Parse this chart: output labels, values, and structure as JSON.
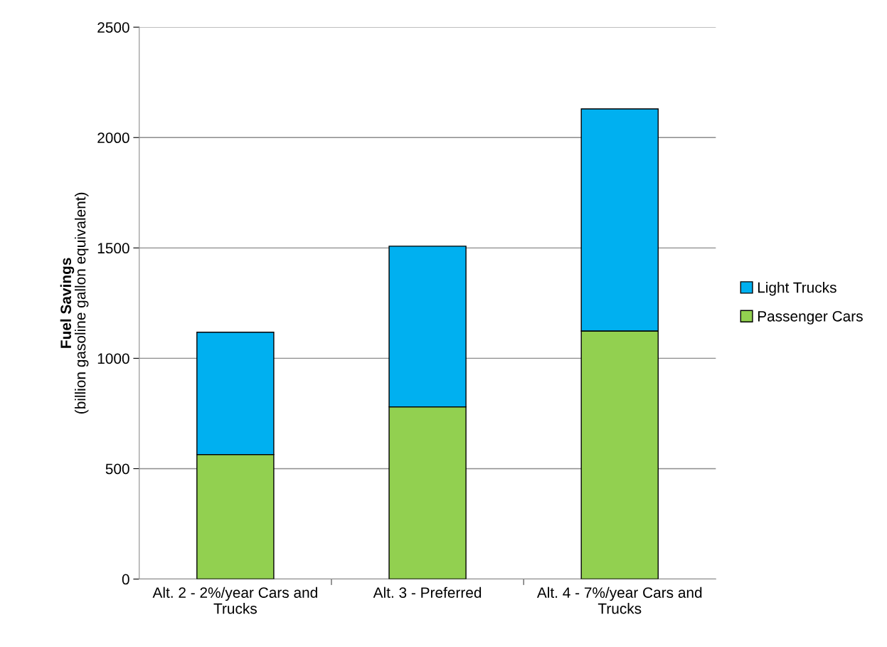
{
  "chart_data": {
    "type": "bar",
    "stacked": true,
    "ylabel": "Fuel Savings\n(billion gasoline gallon equivalent)",
    "categories": [
      "Alt. 2 - 2%/year Cars and\nTrucks",
      "Alt. 3 - Preferred",
      "Alt. 4 - 7%/year Cars and\nTrucks"
    ],
    "series": [
      {
        "name": "Passenger Cars",
        "color": "#92d050",
        "values": [
          564,
          780,
          1124
        ]
      },
      {
        "name": "Light Trucks",
        "color": "#00b0f0",
        "values": [
          554,
          728,
          1006
        ]
      }
    ],
    "ylim": [
      0,
      2500
    ],
    "yticks": [
      0,
      500,
      1000,
      1500,
      2000,
      2500
    ],
    "grid": "y",
    "legend": "right"
  }
}
